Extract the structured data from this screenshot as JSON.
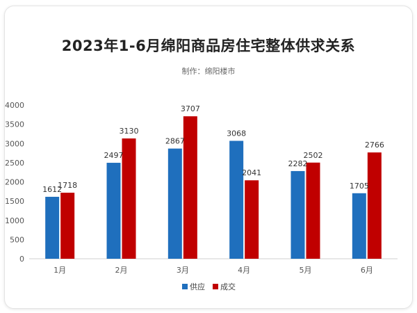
{
  "chart_data": {
    "type": "bar",
    "title": "2023年1-6月绵阳商品房住宅整体供求关系",
    "subtitle": "制作：绵阳楼市",
    "categories": [
      "1月",
      "2月",
      "3月",
      "4月",
      "5月",
      "6月"
    ],
    "series": [
      {
        "name": "供应",
        "color": "#1f6fbd",
        "values": [
          1612,
          2497,
          2867,
          3068,
          2282,
          1705
        ]
      },
      {
        "name": "成交",
        "color": "#c00000",
        "values": [
          1718,
          3130,
          3707,
          2041,
          2502,
          2766
        ]
      }
    ],
    "ylim": [
      0,
      4000
    ],
    "yticks": [
      0,
      500,
      1000,
      1500,
      2000,
      2500,
      3000,
      3500,
      4000
    ],
    "legend_position": "bottom",
    "grid": false
  }
}
